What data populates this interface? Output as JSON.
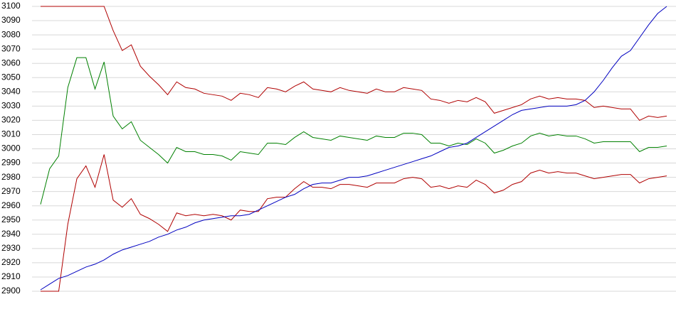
{
  "chart_data": {
    "type": "line",
    "ylim": [
      2900,
      3100
    ],
    "yticks": [
      2900,
      2910,
      2920,
      2930,
      2940,
      2950,
      2960,
      2970,
      2980,
      2990,
      3000,
      3010,
      3020,
      3030,
      3040,
      3050,
      3060,
      3070,
      3080,
      3090,
      3100
    ],
    "grid": true,
    "series": [
      {
        "color": "#b00000",
        "values": [
          3100,
          3100,
          3100,
          3100,
          3100,
          3100,
          3100,
          3100,
          3083,
          3069,
          3073,
          3058,
          3051,
          3045,
          3038,
          3047,
          3043,
          3042,
          3039,
          3038,
          3037,
          3034,
          3039,
          3038,
          3036,
          3043,
          3042,
          3040,
          3044,
          3047,
          3042,
          3041,
          3040,
          3043,
          3041,
          3040,
          3039,
          3042,
          3040,
          3040,
          3043,
          3042,
          3041,
          3035,
          3034,
          3032,
          3034,
          3033,
          3036,
          3033,
          3025,
          3027,
          3029,
          3031,
          3035,
          3037,
          3035,
          3036,
          3035,
          3035,
          3034,
          3029,
          3030,
          3029,
          3028,
          3028,
          3020,
          3023,
          3022,
          3023
        ]
      },
      {
        "color": "#008000",
        "values": [
          2961,
          2986,
          2995,
          3043,
          3064,
          3064,
          3042,
          3061,
          3023,
          3014,
          3019,
          3006,
          3001,
          2996,
          2990,
          3001,
          2998,
          2998,
          2996,
          2996,
          2995,
          2992,
          2998,
          2997,
          2996,
          3004,
          3004,
          3003,
          3008,
          3012,
          3008,
          3007,
          3006,
          3009,
          3008,
          3007,
          3006,
          3009,
          3008,
          3008,
          3011,
          3011,
          3010,
          3004,
          3004,
          3002,
          3004,
          3003,
          3007,
          3004,
          2997,
          2999,
          3002,
          3004,
          3009,
          3011,
          3009,
          3010,
          3009,
          3009,
          3007,
          3004,
          3005,
          3005,
          3005,
          3005,
          2998,
          3001,
          3001,
          3002
        ]
      },
      {
        "color": "#b00000",
        "values": [
          2900,
          2900,
          2900,
          2947,
          2979,
          2988,
          2973,
          2996,
          2964,
          2959,
          2965,
          2954,
          2951,
          2947,
          2942,
          2955,
          2953,
          2954,
          2953,
          2954,
          2953,
          2950,
          2957,
          2956,
          2956,
          2965,
          2966,
          2966,
          2972,
          2977,
          2973,
          2973,
          2972,
          2975,
          2975,
          2974,
          2973,
          2976,
          2976,
          2976,
          2979,
          2980,
          2979,
          2973,
          2974,
          2972,
          2974,
          2973,
          2978,
          2975,
          2969,
          2971,
          2975,
          2977,
          2983,
          2985,
          2983,
          2984,
          2983,
          2983,
          2981,
          2979,
          2980,
          2981,
          2982,
          2982,
          2976,
          2979,
          2980,
          2981
        ]
      },
      {
        "color": "#0000c0",
        "values": [
          2901,
          2905,
          2909,
          2911,
          2914,
          2917,
          2919,
          2922,
          2926,
          2929,
          2931,
          2933,
          2935,
          2938,
          2940,
          2943,
          2945,
          2948,
          2950,
          2951,
          2952,
          2953,
          2953,
          2954,
          2957,
          2960,
          2963,
          2966,
          2968,
          2972,
          2975,
          2976,
          2976,
          2978,
          2980,
          2980,
          2981,
          2983,
          2985,
          2987,
          2989,
          2991,
          2993,
          2995,
          2998,
          3001,
          3002,
          3004,
          3008,
          3012,
          3016,
          3020,
          3024,
          3027,
          3028,
          3029,
          3030,
          3030,
          3030,
          3031,
          3034,
          3040,
          3048,
          3057,
          3065,
          3069,
          3078,
          3087,
          3095,
          3100
        ]
      }
    ]
  }
}
